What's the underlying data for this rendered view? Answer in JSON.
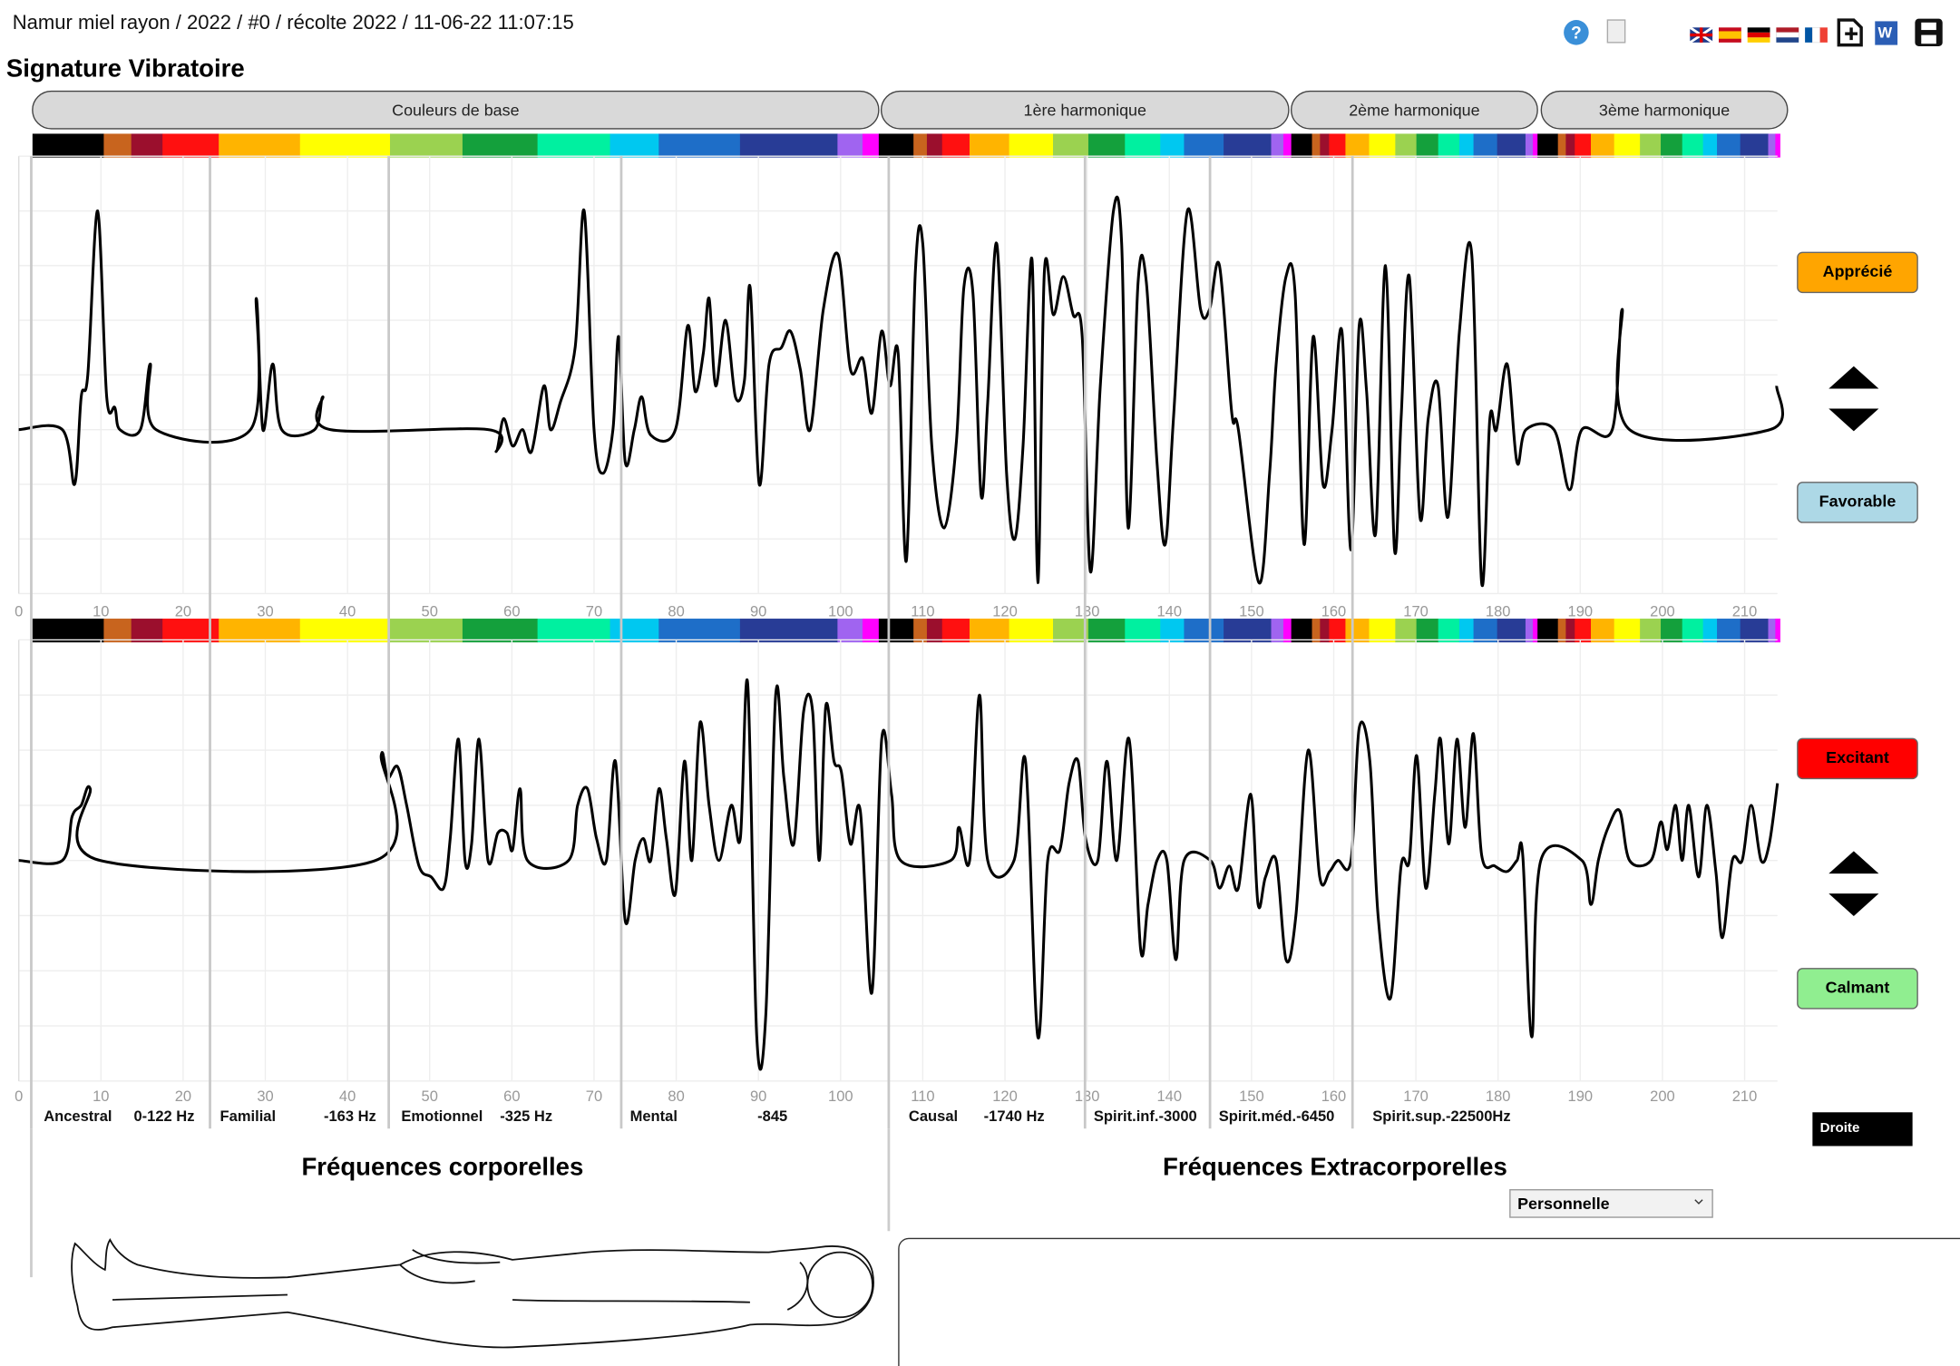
{
  "header": {
    "title": "Namur miel rayon / 2022 / #0 / récolte 2022 / 11-06-22 11:07:15"
  },
  "section_title": "Signature Vibratoire",
  "tabs": [
    "Couleurs de base",
    "1ère harmonique",
    "2ème harmonique",
    "3ème harmonique"
  ],
  "chart_data": [
    {
      "type": "line",
      "color": "#000000",
      "grid": true,
      "xlim": [
        0,
        214
      ],
      "ylim": [
        -3,
        5
      ],
      "xticks": [
        0,
        10,
        20,
        30,
        40,
        50,
        60,
        70,
        80,
        90,
        100,
        110,
        120,
        130,
        140,
        150,
        160,
        170,
        180,
        190,
        200,
        210
      ],
      "x": [
        0,
        5.3,
        6.8,
        7.6,
        8.4,
        9.6,
        10.7,
        11.7,
        12.3,
        14.8,
        16,
        16.7,
        28.2,
        28.9,
        29.7,
        30.9,
        32,
        36,
        37,
        37.9,
        57.1,
        58.1,
        59,
        60.1,
        61.3,
        62.4,
        63.9,
        64.7,
        65.9,
        67.7,
        68.8,
        70,
        71.1,
        72.3,
        73,
        73.8,
        74.9,
        75.8,
        76.9,
        79.9,
        81.4,
        82.3,
        83.3,
        84,
        84.8,
        86,
        87.2,
        88.3,
        89,
        90.1,
        91.3,
        92.8,
        93.9,
        95.1,
        96.3,
        97.9,
        99.7,
        101.2,
        102.7,
        103.8,
        105,
        106,
        107,
        108,
        109.1,
        110,
        111.1,
        112.6,
        114.1,
        115,
        116.1,
        117.1,
        117.9,
        119,
        120.2,
        121.2,
        122.2,
        123.3,
        124,
        124.8,
        125.9,
        127.1,
        128.3,
        129.4,
        130.4,
        131.6,
        133.2,
        134.2,
        135,
        136.2,
        137.2,
        138.5,
        139.5,
        140.5,
        142.2,
        143.8,
        144.9,
        146.1,
        147.6,
        148.4,
        150.9,
        152.2,
        153,
        154.2,
        155.3,
        156.4,
        157.5,
        158.7,
        159.8,
        161,
        162.1,
        163.1,
        164,
        165.1,
        166.3,
        167.4,
        168.2,
        169.2,
        170.5,
        171.5,
        172.7,
        173.9,
        175.3,
        176.8,
        178,
        179,
        179.8,
        181.1,
        182.3,
        183.4,
        186.8,
        188.7,
        190.2,
        193.9,
        195.1,
        196,
        213.1,
        213.9
      ],
      "values": [
        0,
        0,
        -1,
        0.6,
        1,
        4,
        0.6,
        0.4,
        0,
        0,
        1.2,
        0,
        0,
        2.4,
        0,
        1.2,
        0,
        0,
        0.6,
        0,
        0,
        -0.4,
        0.2,
        -0.3,
        0,
        -0.4,
        0.8,
        0,
        0.5,
        1.5,
        4,
        0,
        -0.8,
        0,
        1.7,
        -0.6,
        0,
        0.6,
        -0.1,
        0,
        1.9,
        0.7,
        1.4,
        2.4,
        0.8,
        2,
        0.6,
        0.9,
        2.6,
        -1,
        1.2,
        1.5,
        1.8,
        1.1,
        0,
        2.2,
        3.2,
        1.1,
        1.3,
        0.3,
        1.8,
        0.8,
        1.4,
        -2.4,
        2.9,
        3.4,
        -0.3,
        -1.8,
        -0.2,
        2.6,
        2.5,
        -1.2,
        0.5,
        3.4,
        -0.8,
        -2,
        -0.3,
        3.1,
        -2.8,
        2.9,
        2.1,
        2.8,
        2.1,
        1.7,
        -2.6,
        0.8,
        4,
        3.4,
        -1.8,
        2.7,
        2.7,
        -0.6,
        -2.1,
        0.2,
        4,
        2.2,
        2.2,
        3,
        0.3,
        0,
        -2.8,
        -0.8,
        1.2,
        2.8,
        2.5,
        -2.1,
        1.7,
        -1,
        0,
        1.8,
        -2.2,
        1.9,
        0.7,
        -1.9,
        3,
        -2.2,
        0.2,
        2.8,
        -1.6,
        0.2,
        0.8,
        -1.6,
        1.8,
        3.2,
        -2.8,
        0.2,
        0,
        1.2,
        -0.6,
        0,
        0,
        -1.1,
        0,
        0,
        2.2,
        0,
        0,
        0.8
      ]
    },
    {
      "type": "line",
      "color": "#000000",
      "grid": true,
      "xlim": [
        0,
        214
      ],
      "ylim": [
        -4,
        4
      ],
      "xticks": [
        0,
        10,
        20,
        30,
        40,
        50,
        60,
        70,
        80,
        90,
        100,
        110,
        120,
        130,
        140,
        150,
        160,
        170,
        180,
        190,
        200,
        210
      ],
      "x": [
        0,
        5.3,
        6.5,
        7.6,
        8.7,
        9.9,
        43.4,
        44.1,
        44.9,
        46.1,
        47.2,
        48.7,
        50.2,
        51.7,
        52.5,
        53.5,
        54.3,
        55.1,
        56,
        57.1,
        58.3,
        59.4,
        60.1,
        61,
        61.9,
        66.9,
        68,
        69.2,
        70.3,
        71.5,
        72.6,
        73.8,
        75,
        76,
        76.9,
        77.9,
        78.8,
        79.9,
        81,
        81.9,
        82.9,
        84,
        85.2,
        86.7,
        87.8,
        88.7,
        89.8,
        90.9,
        92.1,
        93.1,
        94.3,
        95.5,
        96.6,
        97.4,
        98.2,
        99.2,
        100.1,
        101.2,
        102.4,
        103.8,
        105,
        106.2,
        107.3,
        113.4,
        114.4,
        115.7,
        116.9,
        117.9,
        121.1,
        122.5,
        124,
        125.2,
        126.7,
        127.8,
        128.9,
        129.8,
        131.3,
        132.4,
        133.6,
        135.1,
        136.5,
        137.4,
        138.5,
        139.7,
        140.8,
        141.8,
        145,
        146.1,
        147.3,
        148.4,
        149.9,
        150.8,
        151.7,
        153,
        154.2,
        155.4,
        156.9,
        158.3,
        159.5,
        160.5,
        162.1,
        163.1,
        164.4,
        165.4,
        166.9,
        168.2,
        169.2,
        170.1,
        171.2,
        172.3,
        173,
        174,
        175,
        176,
        177,
        178,
        179.6,
        181.1,
        182.3,
        183,
        184.1,
        185.2,
        190.2,
        191.3,
        192.2,
        193.4,
        194.8,
        196,
        198.6,
        199.8,
        200.6,
        201.6,
        202.4,
        203.2,
        204.4,
        205.4,
        206.5,
        207.3,
        208.5,
        209.7,
        210.8,
        212,
        213,
        214
      ],
      "values": [
        0,
        0,
        0.8,
        1,
        1.3,
        0,
        0,
        1.9,
        1.5,
        1.7,
        1,
        -0.1,
        -0.3,
        -0.5,
        0.4,
        2.2,
        0,
        0.3,
        2.2,
        0,
        0.5,
        0.5,
        0.2,
        1.3,
        0,
        0,
        1,
        1.3,
        0.4,
        0,
        1.8,
        -1.1,
        0,
        0.4,
        0,
        1.3,
        0.4,
        -0.6,
        1.8,
        0,
        2.5,
        1,
        0,
        1,
        0.4,
        3.2,
        -3.2,
        -2.8,
        3,
        1.5,
        0.3,
        2.7,
        2.7,
        0,
        2.8,
        1.8,
        1.6,
        0.3,
        0.9,
        -2.4,
        2.2,
        1.2,
        0,
        0,
        0.6,
        0,
        3,
        0,
        0,
        1.8,
        -3.2,
        0,
        0.2,
        1.4,
        1.8,
        0.4,
        0,
        1.8,
        0,
        2.2,
        -1.6,
        -0.8,
        0,
        0,
        -1.8,
        0,
        0,
        -0.5,
        -0.1,
        -0.5,
        1.2,
        -0.8,
        -0.3,
        0,
        -1.8,
        -1,
        2,
        -0.3,
        -0.2,
        0,
        0,
        2.4,
        1.8,
        -1,
        -2.5,
        -0.1,
        0,
        1.9,
        -0.5,
        1.2,
        2.2,
        0.3,
        2.2,
        0.6,
        2.3,
        0.1,
        -0.1,
        -0.2,
        0,
        0.1,
        -3.2,
        0,
        0,
        -0.8,
        0,
        0.6,
        0.9,
        0,
        0,
        0.7,
        0.2,
        1,
        0,
        1,
        -0.3,
        1,
        -0.2,
        -1.4,
        0,
        0,
        1,
        0,
        0.3,
        1.4
      ]
    }
  ],
  "section_labels": [
    "Ancestral",
    "0-122 Hz",
    "Familial",
    "-163 Hz",
    "Emotionnel",
    "-325 Hz",
    "Mental",
    "-845",
    "Causal",
    "-1740 Hz",
    "Spirit.inf.-3000",
    "Spirit.méd.-6450",
    "Spirit.sup.-22500Hz"
  ],
  "buttons": [
    "Apprécié",
    "Favorable",
    "Excitant",
    "Calmant",
    "Droite"
  ],
  "panels": {
    "body_title": "Fréquences corporelles",
    "extra_title": "Fréquences Extracorporelles",
    "dropdown": "Personnelle"
  }
}
